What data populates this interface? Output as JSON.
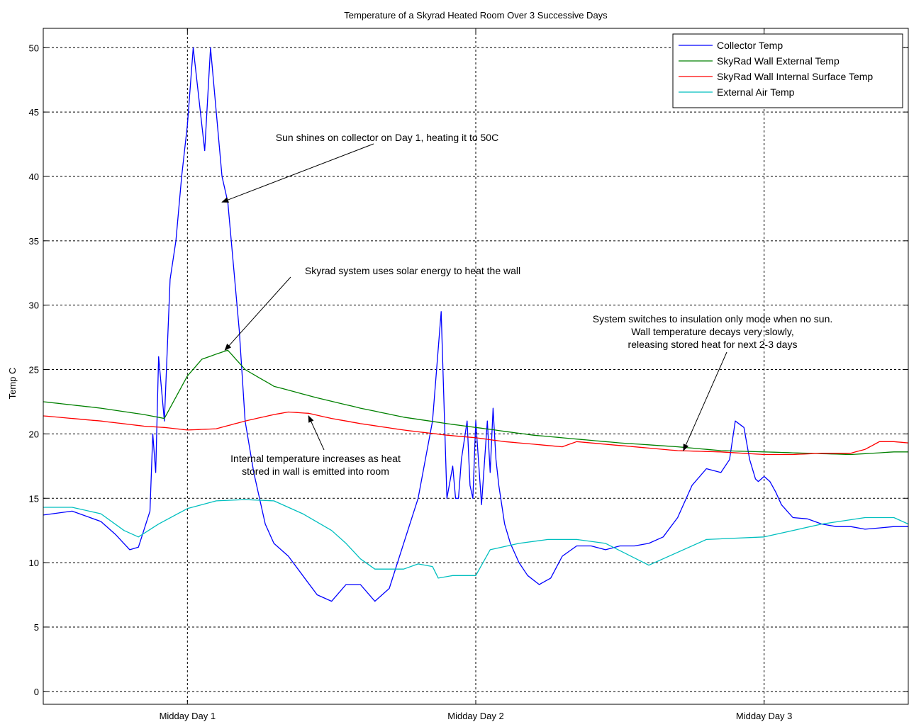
{
  "chart_data": {
    "type": "line",
    "title": "Temperature of a Skyrad Heated Room Over 3 Successive Days",
    "xlabel": "",
    "ylabel": "Temp C",
    "xlim": [
      -0.5,
      2.5
    ],
    "ylim": [
      -1,
      51.5
    ],
    "grid": true,
    "legend_position": "top-right",
    "x_ticks": [
      {
        "value": 0,
        "label": "Midday Day 1"
      },
      {
        "value": 1,
        "label": "Midday Day 2"
      },
      {
        "value": 2,
        "label": "Midday Day 3"
      }
    ],
    "y_ticks": [
      0,
      5,
      10,
      15,
      20,
      25,
      30,
      35,
      40,
      45,
      50
    ],
    "series": [
      {
        "name": "Collector Temp",
        "color": "#0000ff",
        "x": [
          -0.5,
          -0.4,
          -0.3,
          -0.25,
          -0.2,
          -0.17,
          -0.13,
          -0.12,
          -0.11,
          -0.1,
          -0.08,
          -0.06,
          -0.04,
          -0.02,
          0,
          0.02,
          0.04,
          0.06,
          0.08,
          0.1,
          0.12,
          0.14,
          0.16,
          0.18,
          0.2,
          0.23,
          0.27,
          0.3,
          0.35,
          0.4,
          0.45,
          0.5,
          0.55,
          0.6,
          0.65,
          0.7,
          0.75,
          0.8,
          0.85,
          0.88,
          0.9,
          0.92,
          0.93,
          0.94,
          0.95,
          0.97,
          0.98,
          0.99,
          1.0,
          1.02,
          1.04,
          1.05,
          1.06,
          1.07,
          1.08,
          1.1,
          1.12,
          1.15,
          1.18,
          1.22,
          1.26,
          1.3,
          1.35,
          1.4,
          1.45,
          1.5,
          1.55,
          1.6,
          1.65,
          1.7,
          1.75,
          1.8,
          1.85,
          1.88,
          1.9,
          1.93,
          1.95,
          1.97,
          1.98,
          2.0,
          2.02,
          2.04,
          2.06,
          2.08,
          2.1,
          2.15,
          2.2,
          2.25,
          2.3,
          2.35,
          2.4,
          2.45,
          2.5
        ],
        "y": [
          13.7,
          14.0,
          13.2,
          12.2,
          11.0,
          11.2,
          14.0,
          20.0,
          17.0,
          26.0,
          21.0,
          32.0,
          35.0,
          40.0,
          44.0,
          50.0,
          46.0,
          42.0,
          50.0,
          45.0,
          40.0,
          38.0,
          33.0,
          28.0,
          21.0,
          17.0,
          13.0,
          11.5,
          10.5,
          9.0,
          7.5,
          7.0,
          8.3,
          8.3,
          7.0,
          8.0,
          11.5,
          15.0,
          21.0,
          29.5,
          15.0,
          17.5,
          15.0,
          15.0,
          18.0,
          21.0,
          16.0,
          15.0,
          21.0,
          14.5,
          21.0,
          17.0,
          22.0,
          18.0,
          16.0,
          13.0,
          11.5,
          10.0,
          9.0,
          8.3,
          8.8,
          10.5,
          11.3,
          11.3,
          11.0,
          11.3,
          11.3,
          11.5,
          12.0,
          13.5,
          16.0,
          17.3,
          17.0,
          18.0,
          21.0,
          20.5,
          18.0,
          16.5,
          16.3,
          16.7,
          16.3,
          15.5,
          14.5,
          14.0,
          13.5,
          13.4,
          13.0,
          12.8,
          12.8,
          12.6,
          12.7,
          12.8,
          12.8
        ]
      },
      {
        "name": "SkyRad Wall External Temp",
        "color": "#008000",
        "x": [
          -0.5,
          -0.3,
          -0.15,
          -0.08,
          0,
          0.05,
          0.1,
          0.14,
          0.2,
          0.3,
          0.45,
          0.6,
          0.75,
          0.9,
          1.0,
          1.1,
          1.2,
          1.35,
          1.5,
          1.7,
          1.85,
          2.0,
          2.15,
          2.3,
          2.45,
          2.5
        ],
        "y": [
          22.5,
          22.0,
          21.5,
          21.2,
          24.5,
          25.8,
          26.2,
          26.5,
          25.0,
          23.7,
          22.8,
          22.0,
          21.3,
          20.8,
          20.5,
          20.2,
          19.9,
          19.6,
          19.3,
          19.0,
          18.7,
          18.6,
          18.5,
          18.4,
          18.6,
          18.6
        ],
        "step": 0.05
      },
      {
        "name": "SkyRad Wall Internal Surface Temp",
        "color": "#ff0000",
        "x": [
          -0.5,
          -0.3,
          -0.15,
          -0.08,
          0,
          0.1,
          0.2,
          0.3,
          0.35,
          0.42,
          0.5,
          0.6,
          0.75,
          0.9,
          1.0,
          1.1,
          1.2,
          1.3,
          1.35,
          1.5,
          1.7,
          1.85,
          2.0,
          2.1,
          2.2,
          2.3,
          2.35,
          2.4,
          2.45,
          2.5
        ],
        "y": [
          21.4,
          21.0,
          20.6,
          20.5,
          20.3,
          20.4,
          21.0,
          21.5,
          21.7,
          21.6,
          21.2,
          20.8,
          20.3,
          19.9,
          19.7,
          19.4,
          19.2,
          19.0,
          19.4,
          19.1,
          18.7,
          18.6,
          18.4,
          18.4,
          18.5,
          18.5,
          18.8,
          19.4,
          19.4,
          19.3
        ],
        "step": 0.04
      },
      {
        "name": "External Air Temp",
        "color": "#00bfbf",
        "x": [
          -0.5,
          -0.4,
          -0.3,
          -0.22,
          -0.17,
          -0.1,
          0,
          0.1,
          0.2,
          0.3,
          0.4,
          0.5,
          0.55,
          0.6,
          0.65,
          0.75,
          0.8,
          0.85,
          0.87,
          0.92,
          1.0,
          1.05,
          1.15,
          1.25,
          1.35,
          1.45,
          1.6,
          1.8,
          2.0,
          2.1,
          2.2,
          2.35,
          2.45,
          2.5
        ],
        "y": [
          14.3,
          14.3,
          13.8,
          12.5,
          12.0,
          13.0,
          14.2,
          14.8,
          14.9,
          14.8,
          13.8,
          12.5,
          11.5,
          10.3,
          9.5,
          9.5,
          9.9,
          9.7,
          8.8,
          9.0,
          9.0,
          11.0,
          11.5,
          11.8,
          11.8,
          11.5,
          9.8,
          11.8,
          12.0,
          12.5,
          13.0,
          13.5,
          13.5,
          13.0
        ],
        "step": 0
      }
    ],
    "annotations": [
      {
        "lines": [
          "Sun shines on collector on Day 1, heating it to 50C"
        ],
        "point": [
          0.12,
          38.0
        ]
      },
      {
        "lines": [
          "Skyrad system uses solar energy to heat the wall"
        ],
        "point": [
          0.13,
          26.5
        ]
      },
      {
        "lines": [
          "Internal temperature increases as heat",
          "stored in wall is emitted into room"
        ],
        "point": [
          0.42,
          21.4
        ]
      },
      {
        "lines": [
          "System switches to insulation only mode when no sun.",
          "Wall temperature decays very slowly,",
          "releasing stored heat for next 2-3 days"
        ],
        "point": [
          1.72,
          18.7
        ]
      }
    ]
  }
}
